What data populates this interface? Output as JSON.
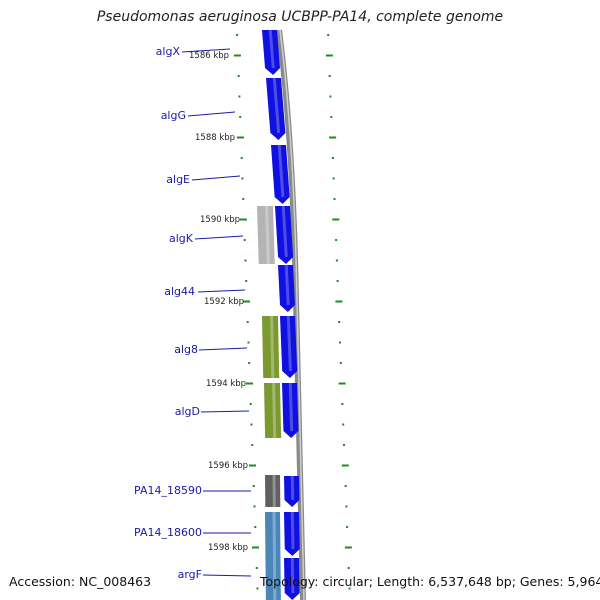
{
  "title": "Pseudomonas aeruginosa UCBPP-PA14, complete genome",
  "accession_text": "Accession: NC_008463",
  "topology_text": "Topology: circular; Length: 6,537,648 bp; Genes: 5,964",
  "colors": {
    "backbone": "#8a8a8a",
    "forward_gene": "#1010e0",
    "label_blue": "#1a1aa8",
    "tick_green": "#1e8c1e",
    "alginate_green": "#7a9a30",
    "grey_gene": "#b4b4b4",
    "dark_grey_gene": "#606060",
    "steel_blue_gene": "#4a86b8"
  },
  "scale_labels": [
    "1586 kbp",
    "1588 kbp",
    "1590 kbp",
    "1592 kbp",
    "1594 kbp",
    "1596 kbp",
    "1598 kbp"
  ],
  "genes": [
    {
      "name": "algX"
    },
    {
      "name": "algG"
    },
    {
      "name": "algE"
    },
    {
      "name": "algK"
    },
    {
      "name": "alg44"
    },
    {
      "name": "alg8"
    },
    {
      "name": "algD"
    },
    {
      "name": "PA14_18590"
    },
    {
      "name": "PA14_18600"
    },
    {
      "name": "argF"
    }
  ]
}
